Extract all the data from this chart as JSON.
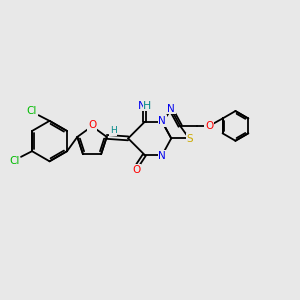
{
  "bg_color": "#e8e8e8",
  "bond_color": "#000000",
  "bond_lw": 1.3,
  "atom_colors": {
    "Cl": "#00bb00",
    "O": "#ff0000",
    "N": "#0000ee",
    "S": "#ccaa00",
    "H": "#008888",
    "C": "#000000"
  },
  "font_size": 7.5
}
